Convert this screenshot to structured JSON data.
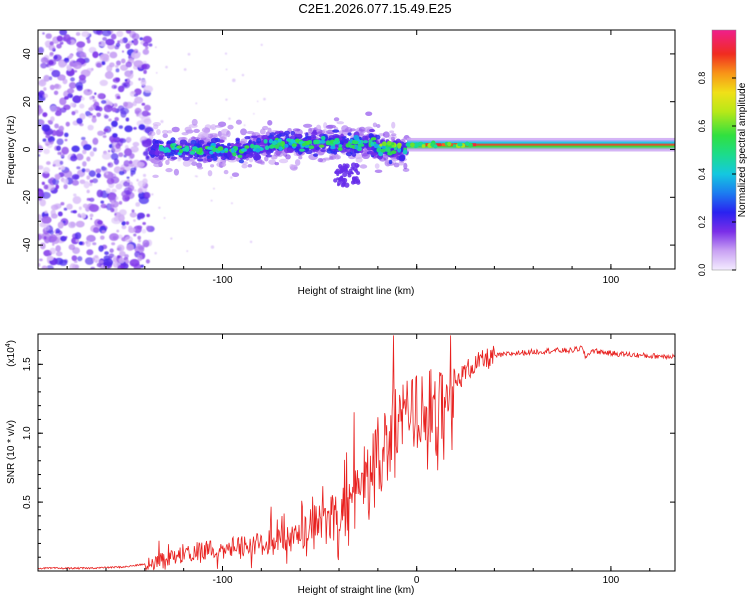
{
  "title": "C2E1.2026.077.15.49.E25",
  "chart_data": [
    {
      "type": "heatmap",
      "name": "spectrogram",
      "xlabel": "Height of straight line (km)",
      "ylabel": "Frequency (Hz)",
      "xlim": [
        -195,
        133
      ],
      "ylim": [
        -50,
        50
      ],
      "xticks": [
        -100,
        0,
        100
      ],
      "xtick_labels": [
        "-100",
        "",
        "100"
      ],
      "yticks": [
        -40,
        -20,
        0,
        20,
        40
      ],
      "ytick_labels": [
        "-40",
        "-20",
        "0",
        "20",
        "40"
      ],
      "grid": false,
      "features": [
        {
          "region": "broadband noise",
          "x_range": [
            -195,
            -137
          ],
          "y_range": [
            -50,
            50
          ],
          "amplitude": 0.15
        },
        {
          "region": "scattered band",
          "x_range": [
            -137,
            -5
          ],
          "center_hz": 0,
          "spread_hz": 6,
          "amplitude": 0.45
        },
        {
          "region": "narrow carrier line",
          "x_range": [
            -5,
            133
          ],
          "center_hz": 2,
          "spread_hz": 2,
          "amplitude": 1.0
        }
      ],
      "colorbar": {
        "label": "Normalized spectral amplitude",
        "range": [
          0,
          1
        ],
        "ticks": [
          0.0,
          0.2,
          0.4,
          0.6,
          0.8
        ],
        "tick_labels": [
          "0.0",
          "0.2",
          "0.4",
          "0.6",
          "0.8"
        ]
      }
    },
    {
      "type": "line",
      "name": "snr",
      "xlabel": "Height of straight line (km)",
      "ylabel": "SNR (10 * v/v)",
      "y_multiplier_label": "(x10",
      "y_multiplier_exp": "4",
      "xlim": [
        -195,
        133
      ],
      "ylim": [
        0,
        1.72
      ],
      "xticks": [
        -100,
        0,
        100
      ],
      "xtick_labels": [
        "-100",
        "0",
        "100"
      ],
      "yticks": [
        0.5,
        1.0,
        1.5
      ],
      "ytick_labels": [
        "0.5",
        "1.0",
        "1.5"
      ],
      "color": "#e8211f",
      "series": [
        {
          "name": "SNR",
          "x": [
            -195,
            -170,
            -150,
            -140,
            -130,
            -120,
            -110,
            -100,
            -90,
            -80,
            -70,
            -60,
            -55,
            -50,
            -45,
            -40,
            -35,
            -30,
            -25,
            -20,
            -15,
            -10,
            -5,
            0,
            5,
            10,
            15,
            20,
            25,
            30,
            40,
            50,
            60,
            70,
            80,
            85,
            87,
            90,
            100,
            110,
            120,
            133
          ],
          "values": [
            0.02,
            0.02,
            0.03,
            0.05,
            0.08,
            0.12,
            0.15,
            0.17,
            0.18,
            0.2,
            0.22,
            0.26,
            0.3,
            0.32,
            0.38,
            0.42,
            0.48,
            0.55,
            0.65,
            0.8,
            0.95,
            1.05,
            1.08,
            1.15,
            1.2,
            1.1,
            1.25,
            1.35,
            1.45,
            1.5,
            1.56,
            1.58,
            1.59,
            1.6,
            1.6,
            1.62,
            1.55,
            1.6,
            1.58,
            1.57,
            1.56,
            1.56
          ]
        }
      ]
    }
  ]
}
